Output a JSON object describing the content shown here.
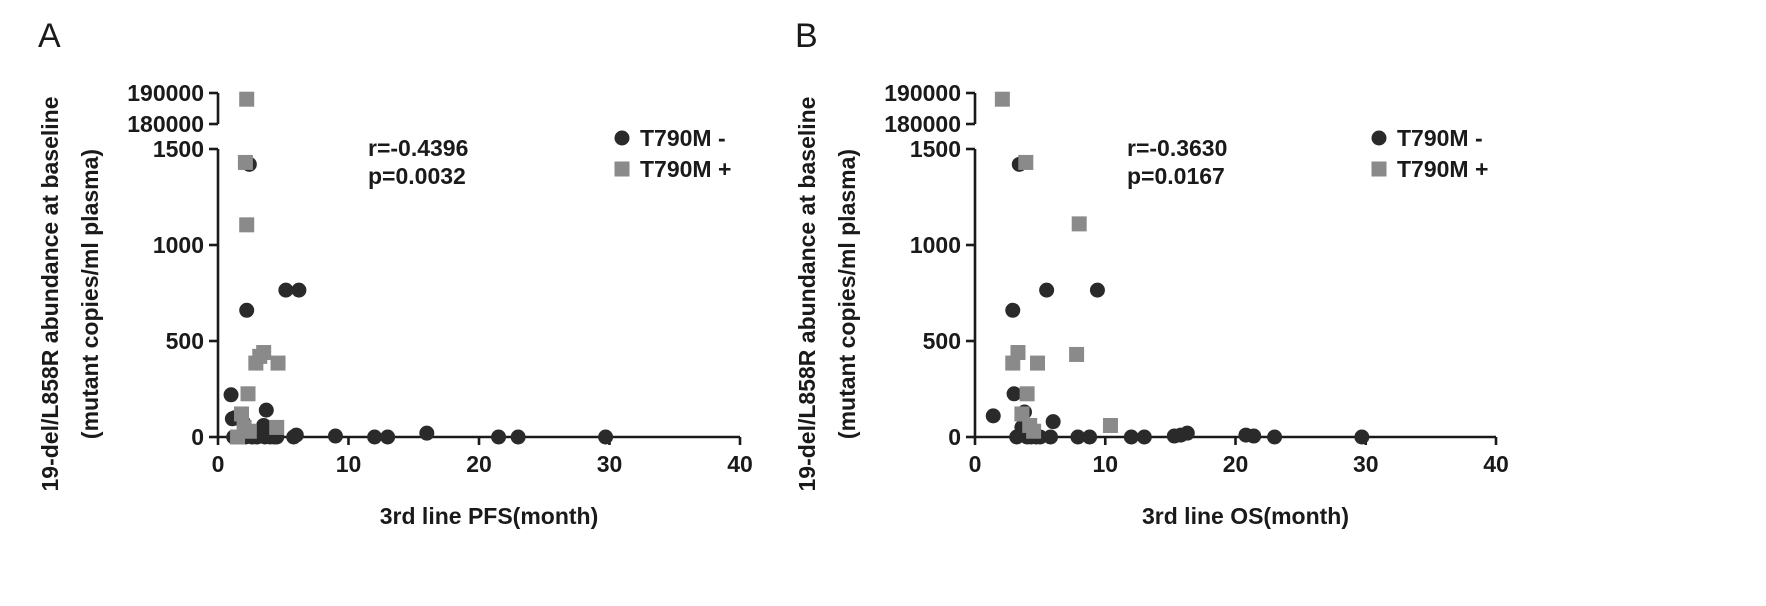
{
  "chart_data": [
    {
      "type": "scatter",
      "panel_label": "A",
      "xlabel": "3rd line PFS(month)",
      "ylabel": "19-del/L858R abundance at baseline",
      "ylabel2": "(mutant copies/ml plasma)",
      "xlim": [
        0,
        40
      ],
      "xticks": [
        "0",
        "10",
        "20",
        "30",
        "40"
      ],
      "ylim": [
        0,
        1500
      ],
      "yticks": [
        "0",
        "500",
        "1000",
        "1500"
      ],
      "ybreak_ticks": [
        "180000",
        "190000"
      ],
      "ybreak_range": [
        180000,
        190000
      ],
      "annotation": {
        "r": "r=-0.4396",
        "p": "p=0.0032"
      },
      "legend_position": "top-right",
      "colors": {
        "T790M-": "#2a2a2a",
        "T790M+": "#8a8a8a"
      },
      "series": [
        {
          "name": "T790M -",
          "marker": "circle",
          "points": [
            [
              1.0,
              220
            ],
            [
              1.1,
              95
            ],
            [
              1.2,
              0
            ],
            [
              1.3,
              100
            ],
            [
              1.5,
              100
            ],
            [
              1.7,
              115
            ],
            [
              1.9,
              80
            ],
            [
              2.1,
              0
            ],
            [
              2.2,
              660
            ],
            [
              2.4,
              1420
            ],
            [
              2.6,
              0
            ],
            [
              3.0,
              0
            ],
            [
              3.3,
              15
            ],
            [
              3.5,
              60
            ],
            [
              3.6,
              0
            ],
            [
              3.7,
              140
            ],
            [
              4.0,
              0
            ],
            [
              4.3,
              0
            ],
            [
              4.5,
              0
            ],
            [
              5.2,
              765
            ],
            [
              5.8,
              0
            ],
            [
              6.0,
              10
            ],
            [
              6.2,
              765
            ],
            [
              9.0,
              5
            ],
            [
              12.0,
              0
            ],
            [
              13.0,
              0
            ],
            [
              16.0,
              20
            ],
            [
              21.5,
              0
            ],
            [
              23.0,
              0
            ],
            [
              29.7,
              0
            ]
          ]
        },
        {
          "name": "T790M +",
          "marker": "square",
          "points": [
            [
              1.5,
              0
            ],
            [
              1.8,
              120
            ],
            [
              2.0,
              50
            ],
            [
              2.1,
              1430
            ],
            [
              2.2,
              1105
            ],
            [
              2.3,
              225
            ],
            [
              2.4,
              30
            ],
            [
              2.9,
              385
            ],
            [
              3.2,
              420
            ],
            [
              3.5,
              440
            ],
            [
              4.5,
              50
            ],
            [
              4.6,
              385
            ]
          ],
          "break_points": [
            [
              2.2,
              188000
            ]
          ]
        }
      ]
    },
    {
      "type": "scatter",
      "panel_label": "B",
      "xlabel": "3rd line OS(month)",
      "ylabel": "19-del/L858R abundance at baseline",
      "ylabel2": "(mutant copies/ml plasma)",
      "xlim": [
        0,
        40
      ],
      "xticks": [
        "0",
        "10",
        "20",
        "30",
        "40"
      ],
      "ylim": [
        0,
        1500
      ],
      "yticks": [
        "0",
        "500",
        "1000",
        "1500"
      ],
      "ybreak_ticks": [
        "180000",
        "190000"
      ],
      "ybreak_range": [
        180000,
        190000
      ],
      "annotation": {
        "r": "r=-0.3630",
        "p": "p=0.0167"
      },
      "legend_position": "top-right",
      "colors": {
        "T790M-": "#2a2a2a",
        "T790M+": "#8a8a8a"
      },
      "series": [
        {
          "name": "T790M -",
          "marker": "circle",
          "points": [
            [
              1.4,
              110
            ],
            [
              2.9,
              660
            ],
            [
              3.0,
              225
            ],
            [
              3.2,
              0
            ],
            [
              3.4,
              1420
            ],
            [
              3.6,
              50
            ],
            [
              3.8,
              130
            ],
            [
              4.0,
              0
            ],
            [
              4.3,
              0
            ],
            [
              4.7,
              0
            ],
            [
              5.0,
              0
            ],
            [
              5.5,
              765
            ],
            [
              5.8,
              0
            ],
            [
              6.0,
              80
            ],
            [
              7.9,
              0
            ],
            [
              8.8,
              0
            ],
            [
              9.4,
              765
            ],
            [
              12.0,
              0
            ],
            [
              13.0,
              0
            ],
            [
              15.3,
              5
            ],
            [
              15.8,
              10
            ],
            [
              16.3,
              20
            ],
            [
              20.8,
              10
            ],
            [
              21.4,
              5
            ],
            [
              23.0,
              0
            ],
            [
              29.7,
              0
            ]
          ]
        },
        {
          "name": "T790M +",
          "marker": "square",
          "points": [
            [
              2.9,
              385
            ],
            [
              3.3,
              440
            ],
            [
              3.6,
              120
            ],
            [
              3.9,
              1430
            ],
            [
              4.0,
              225
            ],
            [
              4.2,
              60
            ],
            [
              4.5,
              30
            ],
            [
              4.8,
              385
            ],
            [
              7.8,
              430
            ],
            [
              8.0,
              1110
            ],
            [
              10.4,
              60
            ]
          ],
          "break_points": [
            [
              2.1,
              188000
            ]
          ]
        }
      ]
    }
  ]
}
